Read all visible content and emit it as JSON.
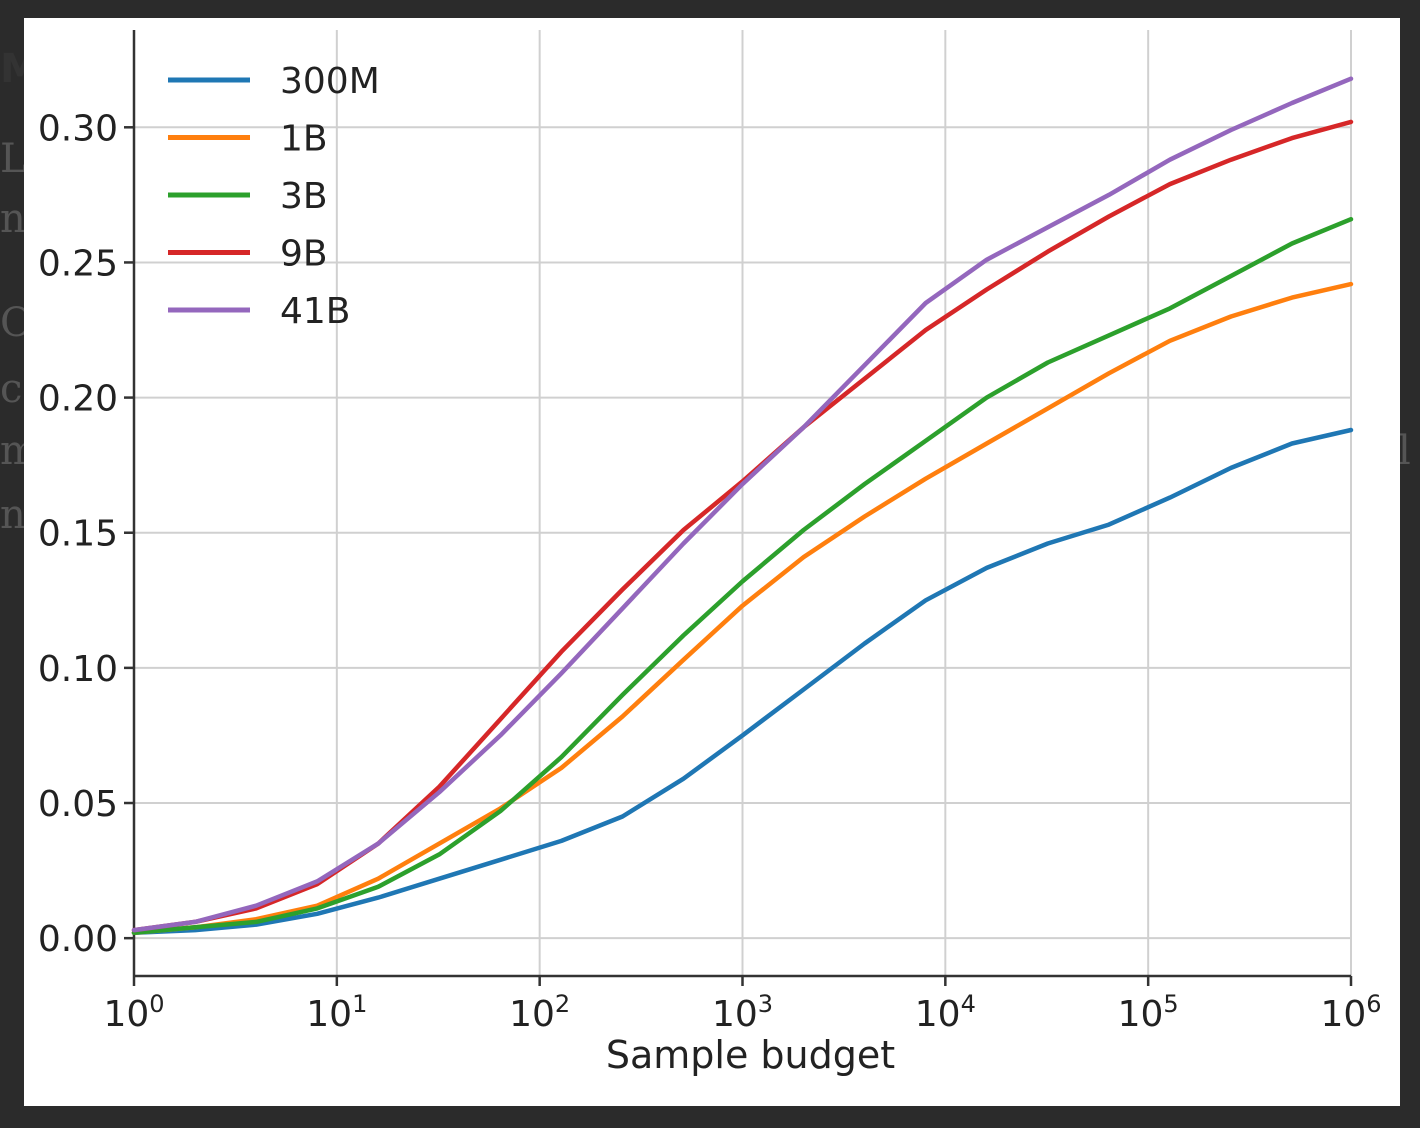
{
  "background_fragments": [
    {
      "text": "M"
    },
    {
      "text": "LI"
    },
    {
      "text": "n"
    },
    {
      "text": "O"
    },
    {
      "text": "co"
    },
    {
      "text": "m"
    },
    {
      "text": "n"
    },
    {
      "text": "l"
    }
  ],
  "chart_data": {
    "type": "line",
    "title": "",
    "xlabel": "Sample budget",
    "ylabel": "",
    "x_scale": "log",
    "xlim": [
      1,
      1000000
    ],
    "ylim": [
      -0.014,
      0.336
    ],
    "x_ticks": [
      1,
      10,
      100,
      1000,
      10000,
      100000,
      1000000
    ],
    "x_tick_labels": [
      {
        "base": "10",
        "exp": "0"
      },
      {
        "base": "10",
        "exp": "1"
      },
      {
        "base": "10",
        "exp": "2"
      },
      {
        "base": "10",
        "exp": "3"
      },
      {
        "base": "10",
        "exp": "4"
      },
      {
        "base": "10",
        "exp": "5"
      },
      {
        "base": "10",
        "exp": "6"
      }
    ],
    "y_ticks": [
      0.0,
      0.05,
      0.1,
      0.15,
      0.2,
      0.25,
      0.3
    ],
    "y_tick_labels": [
      "0.00",
      "0.05",
      "0.10",
      "0.15",
      "0.20",
      "0.25",
      "0.30"
    ],
    "grid": true,
    "legend_position": "top-left",
    "x": [
      1,
      2,
      4,
      8,
      16,
      32,
      64,
      128,
      256,
      512,
      1000,
      2000,
      4000,
      8000,
      16000,
      32000,
      64000,
      128000,
      256000,
      512000,
      1000000
    ],
    "series": [
      {
        "name": "300M",
        "color": "#1f77b4",
        "values": [
          0.002,
          0.003,
          0.005,
          0.009,
          0.015,
          0.022,
          0.029,
          0.036,
          0.045,
          0.059,
          0.075,
          0.092,
          0.109,
          0.125,
          0.137,
          0.146,
          0.153,
          0.163,
          0.174,
          0.183,
          0.188
        ]
      },
      {
        "name": "1B",
        "color": "#ff7f0e",
        "values": [
          0.002,
          0.004,
          0.007,
          0.012,
          0.022,
          0.035,
          0.048,
          0.063,
          0.082,
          0.103,
          0.123,
          0.141,
          0.156,
          0.17,
          0.183,
          0.196,
          0.209,
          0.221,
          0.23,
          0.237,
          0.242
        ]
      },
      {
        "name": "3B",
        "color": "#2ca02c",
        "values": [
          0.002,
          0.004,
          0.006,
          0.011,
          0.019,
          0.031,
          0.047,
          0.067,
          0.09,
          0.112,
          0.132,
          0.151,
          0.168,
          0.184,
          0.2,
          0.213,
          0.223,
          0.233,
          0.245,
          0.257,
          0.266
        ]
      },
      {
        "name": "9B",
        "color": "#d62728",
        "values": [
          0.003,
          0.006,
          0.011,
          0.02,
          0.035,
          0.056,
          0.081,
          0.106,
          0.129,
          0.151,
          0.169,
          0.189,
          0.207,
          0.225,
          0.24,
          0.254,
          0.267,
          0.279,
          0.288,
          0.296,
          0.302
        ]
      },
      {
        "name": "41B",
        "color": "#9467bd",
        "values": [
          0.003,
          0.006,
          0.012,
          0.021,
          0.035,
          0.054,
          0.075,
          0.098,
          0.122,
          0.146,
          0.168,
          0.189,
          0.212,
          0.235,
          0.251,
          0.263,
          0.275,
          0.288,
          0.299,
          0.309,
          0.318
        ]
      }
    ]
  }
}
